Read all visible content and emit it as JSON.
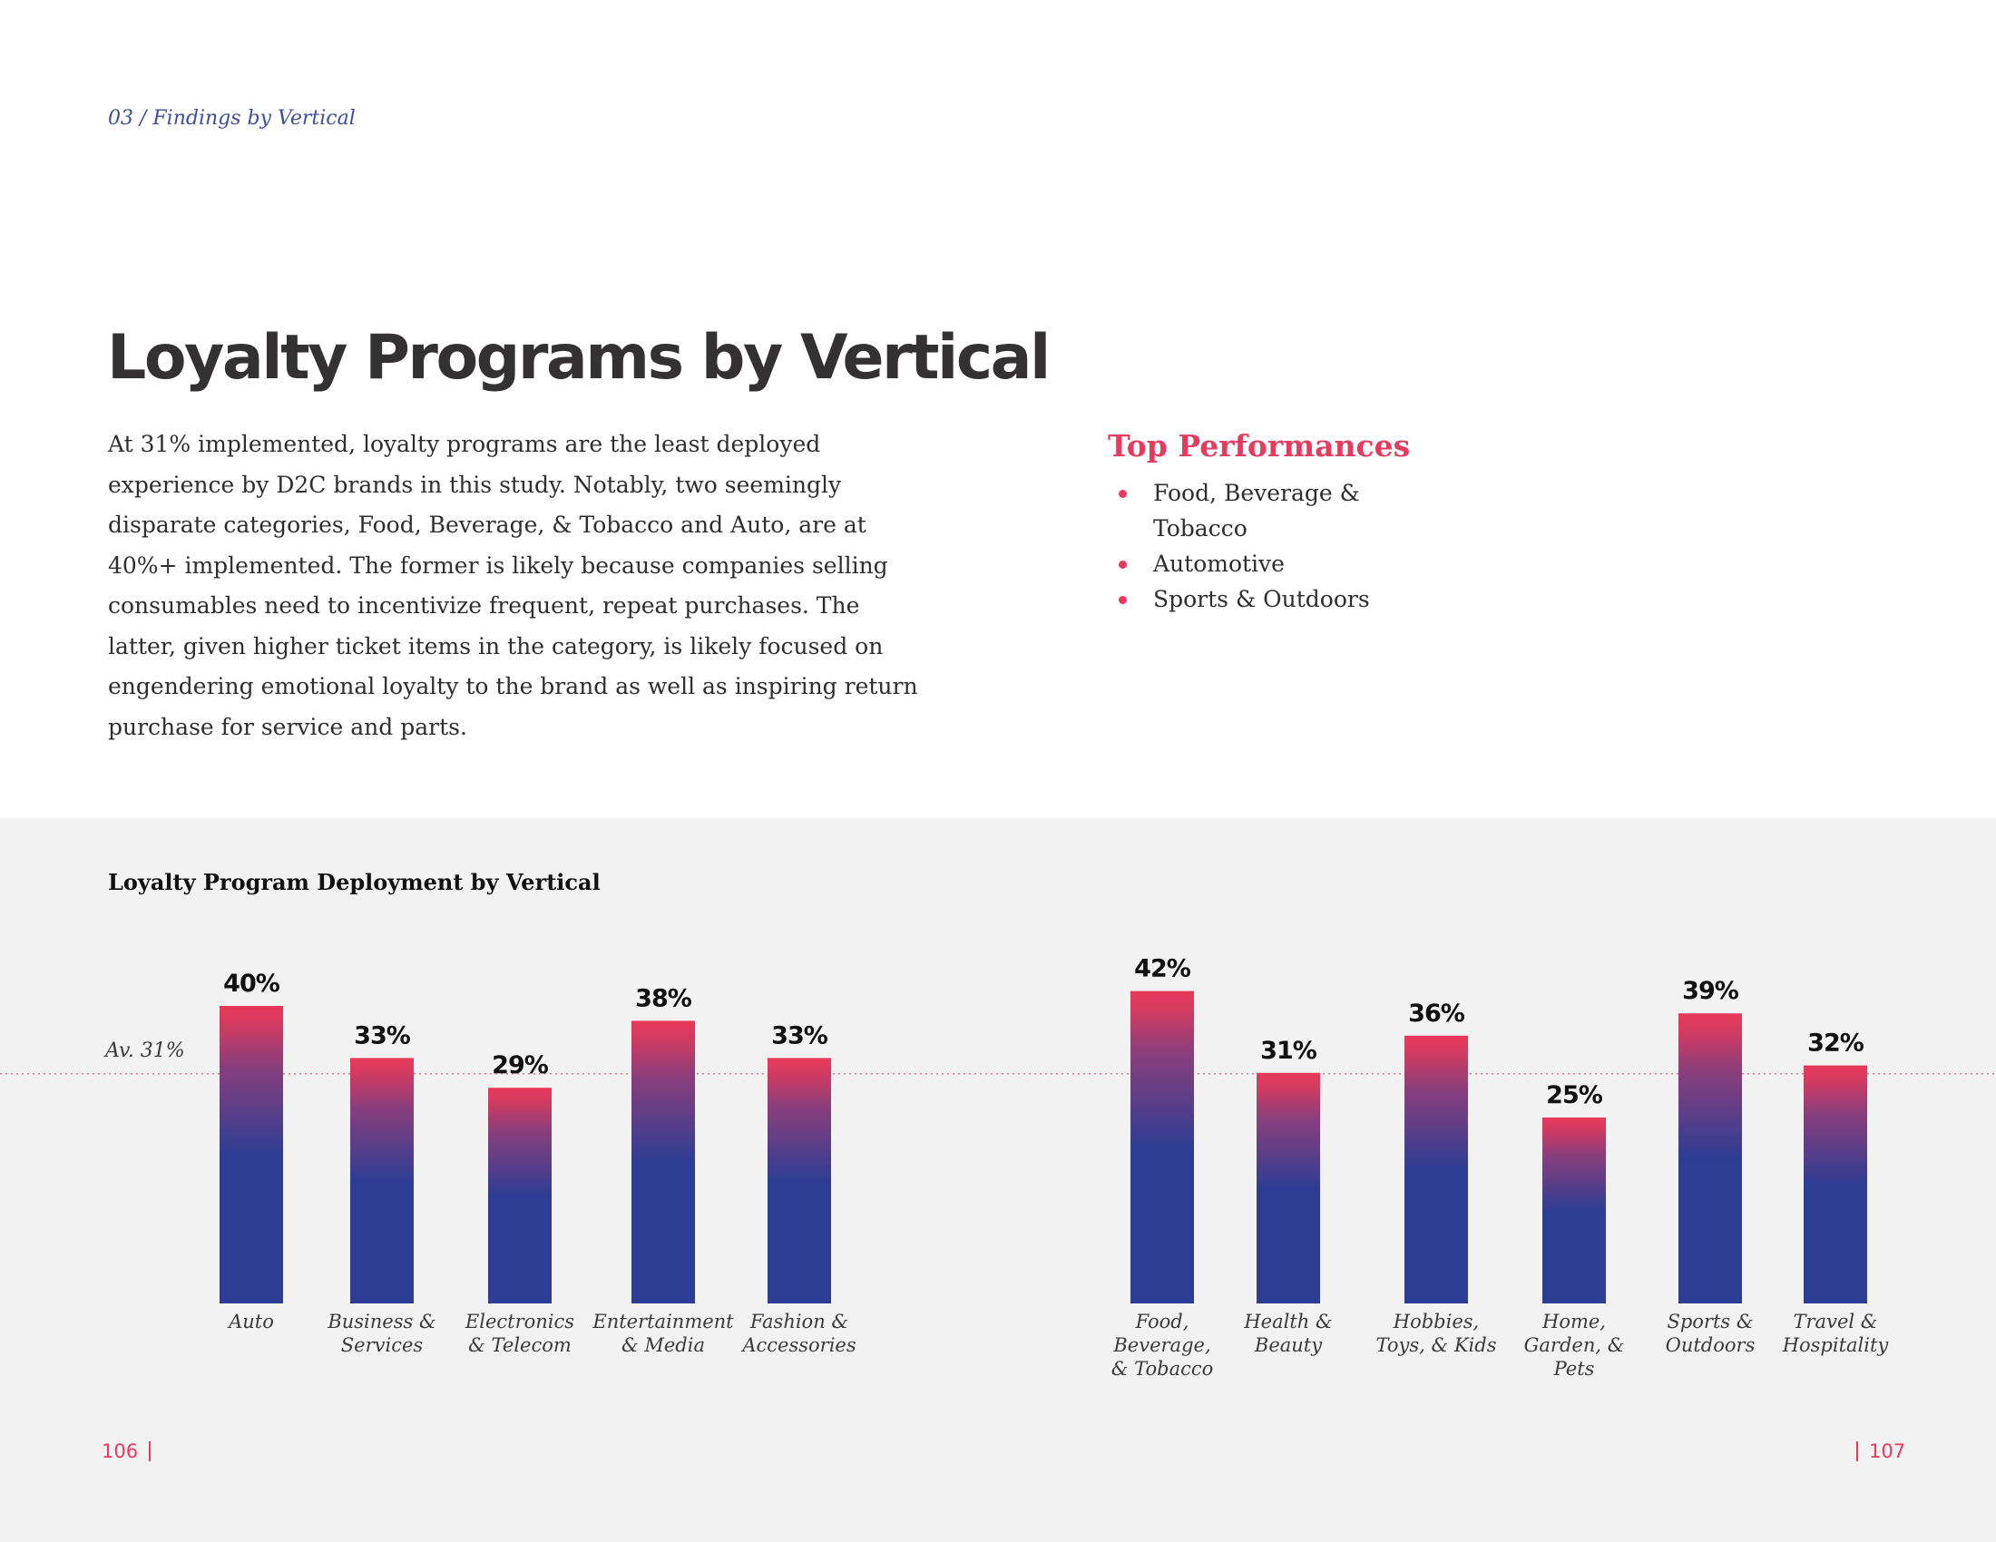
{
  "header": {
    "breadcrumb": "03 / Findings by Vertical",
    "title": "Loyalty Programs by Vertical"
  },
  "intro": {
    "text": "At 31% implemented, loyalty programs are the least deployed experience by D2C brands in this study. Notably, two seemingly disparate categories, Food, Beverage, & Tobacco and Auto, are at 40%+ implemented. The former is likely because companies selling consumables need to incentivize frequent, repeat purchases. The latter, given higher ticket items in the category, is likely focused on engendering emotional loyalty to the brand as well as inspiring return purchase for service and parts."
  },
  "top_performances": {
    "title": "Top Performances",
    "items": [
      "Food, Beverage & Tobacco",
      "Automotive",
      "Sports & Outdoors"
    ]
  },
  "footer": {
    "page_left": "106",
    "page_right": "107"
  },
  "colors": {
    "accent": "#e63b5f",
    "bar_top": "#e8395a",
    "bar_bottom": "#2e3d94",
    "panel_bg": "#f2f2f2",
    "breadcrumb": "#3e4e9c"
  },
  "chart_data": {
    "type": "bar",
    "title": "Loyalty Program Deployment by Vertical",
    "ylabel": "",
    "xlabel": "",
    "ylim": [
      0,
      100
    ],
    "average": {
      "label": "Av. 31%",
      "value": 31
    },
    "categories": [
      "Auto",
      "Business & Services",
      "Electronics & Telecom",
      "Entertainment & Media",
      "Fashion & Accessories",
      "Food, Beverage, & Tobacco",
      "Health & Beauty",
      "Hobbies, Toys, & Kids",
      "Home, Garden, & Pets",
      "Sports & Outdoors",
      "Travel & Hospitality"
    ],
    "category_label_lines": [
      [
        "Auto"
      ],
      [
        "Business &",
        "Services"
      ],
      [
        "Electronics",
        "& Telecom"
      ],
      [
        "Entertainment",
        "& Media"
      ],
      [
        "Fashion &",
        "Accessories"
      ],
      [
        "Food,",
        "Beverage,",
        "& Tobacco"
      ],
      [
        "Health &",
        "Beauty"
      ],
      [
        "Hobbies,",
        "Toys, & Kids"
      ],
      [
        "Home,",
        "Garden, &",
        "Pets"
      ],
      [
        "Sports &",
        "Outdoors"
      ],
      [
        "Travel &",
        "Hospitality"
      ]
    ],
    "values": [
      40,
      33,
      29,
      38,
      33,
      42,
      31,
      36,
      25,
      39,
      32
    ],
    "value_labels": [
      "40%",
      "33%",
      "29%",
      "38%",
      "33%",
      "42%",
      "31%",
      "36%",
      "25%",
      "39%",
      "32%"
    ]
  }
}
